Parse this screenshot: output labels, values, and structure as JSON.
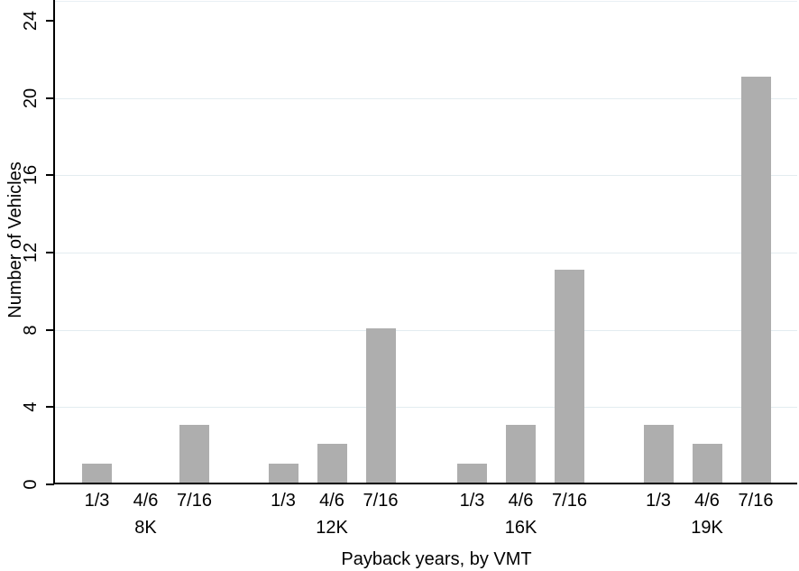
{
  "chart_data": {
    "type": "bar",
    "title": "",
    "xlabel": "Payback years, by VMT",
    "ylabel": "Number of Vehicles",
    "ylim": [
      0,
      24
    ],
    "yticks": [
      0,
      4,
      8,
      12,
      16,
      20,
      24
    ],
    "gridline_values": [
      4,
      8,
      12,
      16,
      20
    ],
    "grid": true,
    "legend_position": "none",
    "subcategories": [
      "1/3",
      "4/6",
      "7/16"
    ],
    "groups": [
      {
        "label": "8K",
        "values": [
          1,
          0,
          3
        ]
      },
      {
        "label": "12K",
        "values": [
          1,
          2,
          8
        ]
      },
      {
        "label": "16K",
        "values": [
          1,
          3,
          11
        ]
      },
      {
        "label": "19K",
        "values": [
          3,
          2,
          21
        ]
      }
    ],
    "colors": {
      "bar": "#aeaeae",
      "grid": "#e3ecf0",
      "axis": "#000000",
      "background": "#ffffff"
    }
  }
}
